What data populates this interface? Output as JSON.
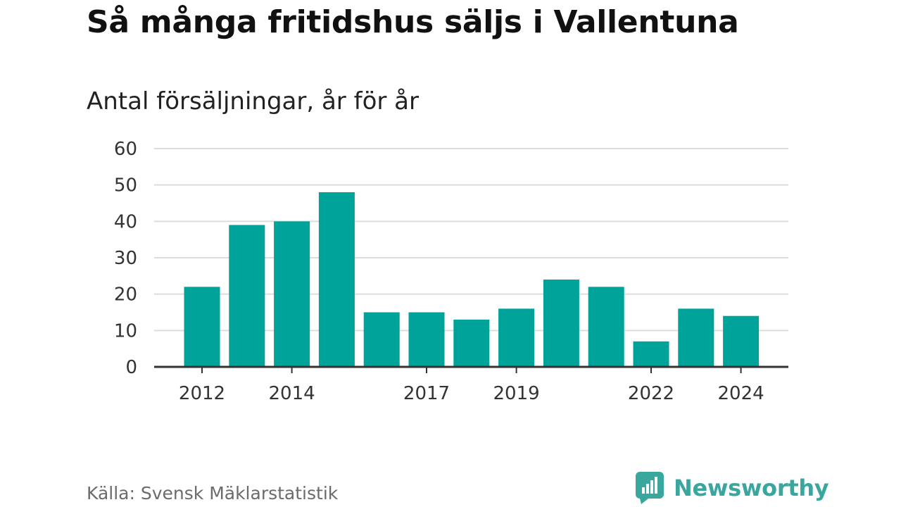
{
  "header": {
    "title": "Så många fritidshus säljs i Vallentuna",
    "subtitle": "Antal försäljningar, år för år"
  },
  "footer": {
    "source": "Källa: Svensk Mäklarstatistik",
    "brand": "Newsworthy",
    "brand_icon": "bar-chart-speech-bubble-icon"
  },
  "colors": {
    "bar": "#00a39a",
    "grid": "#dddddd",
    "axis": "#333333",
    "brand": "#3aa79e"
  },
  "chart_data": {
    "type": "bar",
    "title": "Så många fritidshus säljs i Vallentuna",
    "subtitle": "Antal försäljningar, år för år",
    "categories": [
      "2012",
      "2013",
      "2014",
      "2015",
      "2016",
      "2017",
      "2018",
      "2019",
      "2020",
      "2021",
      "2022",
      "2023",
      "2024"
    ],
    "values": [
      22,
      39,
      40,
      48,
      15,
      15,
      13,
      16,
      24,
      22,
      7,
      16,
      14
    ],
    "x_tick_labels": [
      "2012",
      "2014",
      "2017",
      "2019",
      "2022",
      "2024"
    ],
    "y_ticks": [
      0,
      10,
      20,
      30,
      40,
      50,
      60
    ],
    "ylim": [
      0,
      60
    ],
    "grid": true,
    "legend": "none",
    "xlabel": "",
    "ylabel": ""
  }
}
